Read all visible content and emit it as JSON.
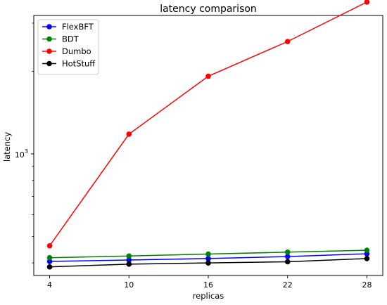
{
  "chart_data": {
    "type": "line",
    "title": "latency comparison",
    "xlabel": "replicas",
    "ylabel": "latency",
    "x": [
      4,
      10,
      16,
      22,
      28
    ],
    "xticks": [
      "4",
      "10",
      "16",
      "22",
      "28"
    ],
    "yscale": "log",
    "ylim": [
      360,
      3200
    ],
    "major_ytick_label": {
      "base": "10",
      "exponent": "3"
    },
    "grid": false,
    "legend_position": "top-left",
    "series": [
      {
        "name": "FlexBFT",
        "color": "#0000ff",
        "values": [
          405,
          410,
          415,
          422,
          432
        ]
      },
      {
        "name": "BDT",
        "color": "#008000",
        "values": [
          418,
          424,
          431,
          438,
          445
        ]
      },
      {
        "name": "Dumbo",
        "color": "#ff0000",
        "values": [
          462,
          1180,
          1920,
          2570,
          3580
        ]
      },
      {
        "name": "HotStuff",
        "color": "#000000",
        "values": [
          387,
          396,
          400,
          404,
          415
        ]
      }
    ]
  }
}
